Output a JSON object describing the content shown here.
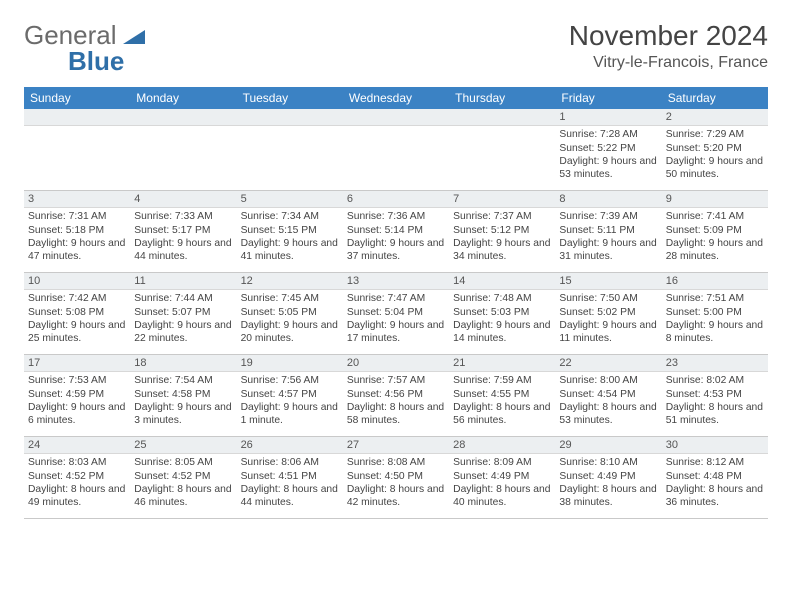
{
  "logo": {
    "general": "General",
    "blue": "Blue"
  },
  "title": "November 2024",
  "location": "Vitry-le-Francois, France",
  "day_headers": [
    "Sunday",
    "Monday",
    "Tuesday",
    "Wednesday",
    "Thursday",
    "Friday",
    "Saturday"
  ],
  "colors": {
    "header_bg": "#3b82c4",
    "header_text": "#ffffff",
    "daynum_bg": "#eceff1",
    "border": "#c9c9c9",
    "text": "#444444",
    "logo_gray": "#6b6b6b",
    "logo_blue": "#2f6fa8"
  },
  "weeks": [
    [
      null,
      null,
      null,
      null,
      null,
      {
        "n": "1",
        "sunrise": "7:28 AM",
        "sunset": "5:22 PM",
        "daylight": "9 hours and 53 minutes."
      },
      {
        "n": "2",
        "sunrise": "7:29 AM",
        "sunset": "5:20 PM",
        "daylight": "9 hours and 50 minutes."
      }
    ],
    [
      {
        "n": "3",
        "sunrise": "7:31 AM",
        "sunset": "5:18 PM",
        "daylight": "9 hours and 47 minutes."
      },
      {
        "n": "4",
        "sunrise": "7:33 AM",
        "sunset": "5:17 PM",
        "daylight": "9 hours and 44 minutes."
      },
      {
        "n": "5",
        "sunrise": "7:34 AM",
        "sunset": "5:15 PM",
        "daylight": "9 hours and 41 minutes."
      },
      {
        "n": "6",
        "sunrise": "7:36 AM",
        "sunset": "5:14 PM",
        "daylight": "9 hours and 37 minutes."
      },
      {
        "n": "7",
        "sunrise": "7:37 AM",
        "sunset": "5:12 PM",
        "daylight": "9 hours and 34 minutes."
      },
      {
        "n": "8",
        "sunrise": "7:39 AM",
        "sunset": "5:11 PM",
        "daylight": "9 hours and 31 minutes."
      },
      {
        "n": "9",
        "sunrise": "7:41 AM",
        "sunset": "5:09 PM",
        "daylight": "9 hours and 28 minutes."
      }
    ],
    [
      {
        "n": "10",
        "sunrise": "7:42 AM",
        "sunset": "5:08 PM",
        "daylight": "9 hours and 25 minutes."
      },
      {
        "n": "11",
        "sunrise": "7:44 AM",
        "sunset": "5:07 PM",
        "daylight": "9 hours and 22 minutes."
      },
      {
        "n": "12",
        "sunrise": "7:45 AM",
        "sunset": "5:05 PM",
        "daylight": "9 hours and 20 minutes."
      },
      {
        "n": "13",
        "sunrise": "7:47 AM",
        "sunset": "5:04 PM",
        "daylight": "9 hours and 17 minutes."
      },
      {
        "n": "14",
        "sunrise": "7:48 AM",
        "sunset": "5:03 PM",
        "daylight": "9 hours and 14 minutes."
      },
      {
        "n": "15",
        "sunrise": "7:50 AM",
        "sunset": "5:02 PM",
        "daylight": "9 hours and 11 minutes."
      },
      {
        "n": "16",
        "sunrise": "7:51 AM",
        "sunset": "5:00 PM",
        "daylight": "9 hours and 8 minutes."
      }
    ],
    [
      {
        "n": "17",
        "sunrise": "7:53 AM",
        "sunset": "4:59 PM",
        "daylight": "9 hours and 6 minutes."
      },
      {
        "n": "18",
        "sunrise": "7:54 AM",
        "sunset": "4:58 PM",
        "daylight": "9 hours and 3 minutes."
      },
      {
        "n": "19",
        "sunrise": "7:56 AM",
        "sunset": "4:57 PM",
        "daylight": "9 hours and 1 minute."
      },
      {
        "n": "20",
        "sunrise": "7:57 AM",
        "sunset": "4:56 PM",
        "daylight": "8 hours and 58 minutes."
      },
      {
        "n": "21",
        "sunrise": "7:59 AM",
        "sunset": "4:55 PM",
        "daylight": "8 hours and 56 minutes."
      },
      {
        "n": "22",
        "sunrise": "8:00 AM",
        "sunset": "4:54 PM",
        "daylight": "8 hours and 53 minutes."
      },
      {
        "n": "23",
        "sunrise": "8:02 AM",
        "sunset": "4:53 PM",
        "daylight": "8 hours and 51 minutes."
      }
    ],
    [
      {
        "n": "24",
        "sunrise": "8:03 AM",
        "sunset": "4:52 PM",
        "daylight": "8 hours and 49 minutes."
      },
      {
        "n": "25",
        "sunrise": "8:05 AM",
        "sunset": "4:52 PM",
        "daylight": "8 hours and 46 minutes."
      },
      {
        "n": "26",
        "sunrise": "8:06 AM",
        "sunset": "4:51 PM",
        "daylight": "8 hours and 44 minutes."
      },
      {
        "n": "27",
        "sunrise": "8:08 AM",
        "sunset": "4:50 PM",
        "daylight": "8 hours and 42 minutes."
      },
      {
        "n": "28",
        "sunrise": "8:09 AM",
        "sunset": "4:49 PM",
        "daylight": "8 hours and 40 minutes."
      },
      {
        "n": "29",
        "sunrise": "8:10 AM",
        "sunset": "4:49 PM",
        "daylight": "8 hours and 38 minutes."
      },
      {
        "n": "30",
        "sunrise": "8:12 AM",
        "sunset": "4:48 PM",
        "daylight": "8 hours and 36 minutes."
      }
    ]
  ],
  "labels": {
    "sunrise": "Sunrise: ",
    "sunset": "Sunset: ",
    "daylight": "Daylight: "
  }
}
